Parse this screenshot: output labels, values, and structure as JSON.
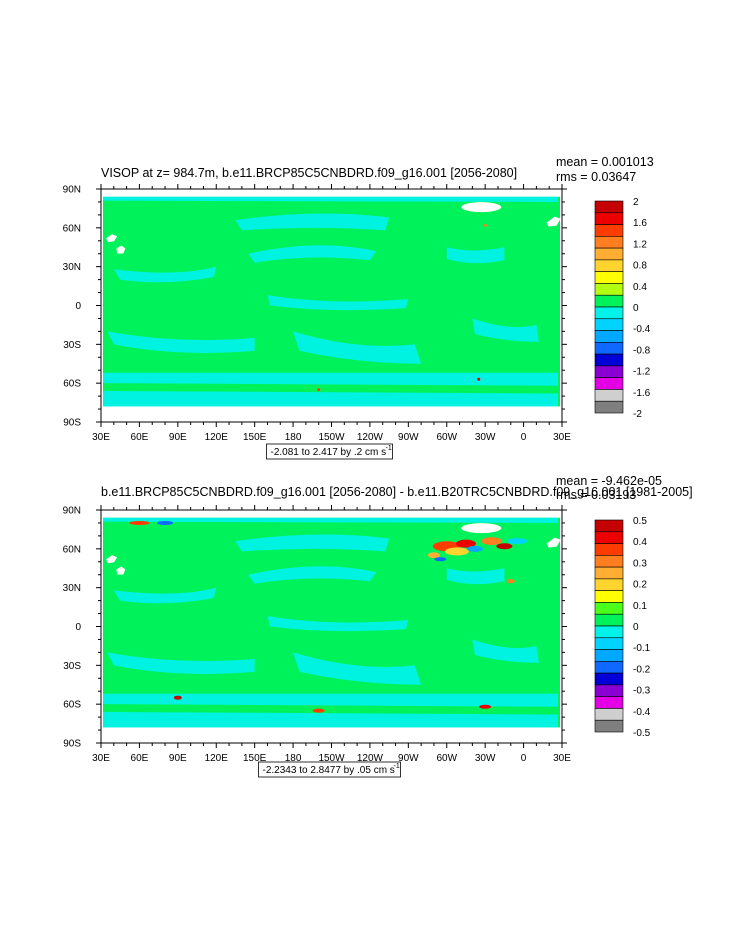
{
  "colors": {
    "land": "#ffffff",
    "ocean_zero": "#00f25b",
    "ocean_neg": "#00f2e8",
    "frame": "#000000"
  },
  "chart_data": [
    {
      "type": "heatmap",
      "title": "VISOP at z= 984.7m, b.e11.BRCP85C5CNBDRD.f09_g16.001 [2056-2080]",
      "stats": [
        "mean = 0.001013",
        "rms = 0.03647"
      ],
      "x_ticks": [
        "30E",
        "60E",
        "90E",
        "120E",
        "150E",
        "180",
        "150W",
        "120W",
        "90W",
        "60W",
        "30W",
        "0",
        "30E"
      ],
      "y_ticks": [
        "90N",
        "60N",
        "30N",
        "0",
        "30S",
        "60S",
        "90S"
      ],
      "colorbar": {
        "labels": [
          "2",
          "1.6",
          "1.2",
          "0.8",
          "0.4",
          "0",
          "-0.4",
          "-0.8",
          "-1.2",
          "-1.6",
          "-2"
        ],
        "colors": [
          "#c40000",
          "#ec0000",
          "#ff3c00",
          "#ff7e1f",
          "#ffad33",
          "#ffd42e",
          "#ffff00",
          "#b2ff12",
          "#00f25b",
          "#00f2e8",
          "#00d3ff",
          "#00a8ff",
          "#0f68ff",
          "#0000d7",
          "#8a00d2",
          "#e400e4",
          "#cfcfcf",
          "#7f7f7f"
        ]
      },
      "range_label": "-2.081 to 2.417 by .2 cm s",
      "range_sup": "-1",
      "anomaly_level": 1
    },
    {
      "type": "heatmap",
      "title": "b.e11.BRCP85C5CNBDRD.f09_g16.001 [2056-2080] - b.e11.B20TRC5CNBDRD.f09_g16.001 [1981-2005]",
      "stats": [
        "mean = -9.462e-05",
        "rms = 0.03193"
      ],
      "x_ticks": [
        "30E",
        "60E",
        "90E",
        "120E",
        "150E",
        "180",
        "150W",
        "120W",
        "90W",
        "60W",
        "30W",
        "0",
        "30E"
      ],
      "y_ticks": [
        "90N",
        "60N",
        "30N",
        "0",
        "30S",
        "60S",
        "90S"
      ],
      "colorbar": {
        "labels": [
          "0.5",
          "0.4",
          "0.3",
          "0.2",
          "0.1",
          "0",
          "-0.1",
          "-0.2",
          "-0.3",
          "-0.4",
          "-0.5"
        ],
        "colors": [
          "#c40000",
          "#ec0000",
          "#ff3c00",
          "#ff7e1f",
          "#ffad33",
          "#ffd42e",
          "#ffff00",
          "#4cff1a",
          "#00f25b",
          "#00f2e8",
          "#00d3ff",
          "#00a8ff",
          "#0f68ff",
          "#0000d7",
          "#8a00d2",
          "#e400e4",
          "#cfcfcf",
          "#7f7f7f"
        ]
      },
      "range_label": "-2.2343 to 2.8477 by .05 cm s",
      "range_sup": "-1",
      "anomaly_level": 2
    }
  ]
}
